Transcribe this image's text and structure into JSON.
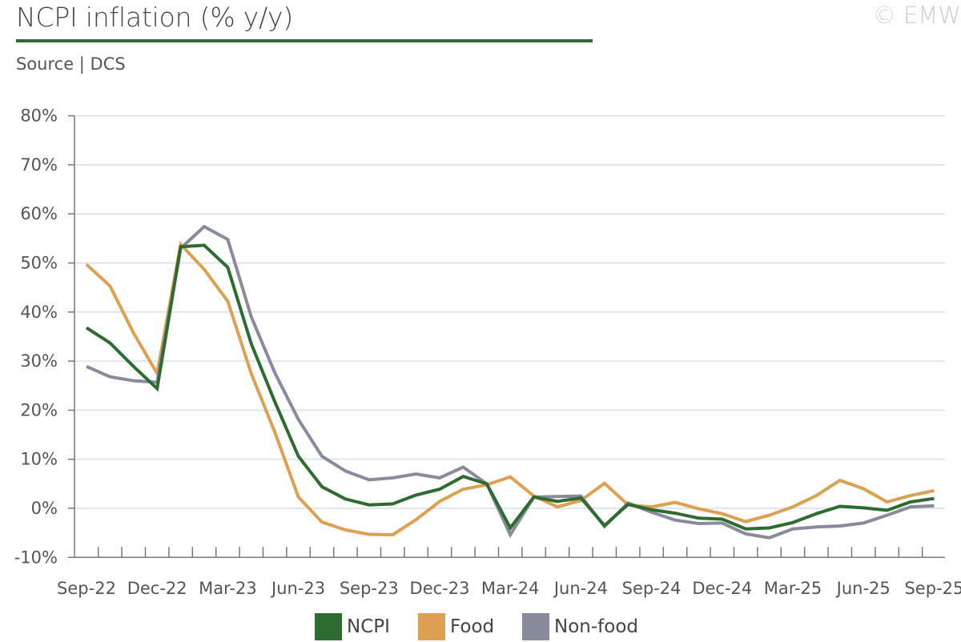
{
  "header": {
    "title": "NCPI inflation (% y/y)",
    "source": "Source | DCS",
    "copyright": "© EMW"
  },
  "colors": {
    "rule": "#2e6b30",
    "grid": "#d5e0e8",
    "axis": "#777777"
  },
  "chart_data": {
    "type": "line",
    "y_unit": "%",
    "ylim": [
      -10,
      80
    ],
    "y_ticks": [
      -10,
      0,
      10,
      20,
      30,
      40,
      50,
      60,
      70,
      80
    ],
    "y_tick_labels": [
      "-10%",
      "0%",
      "10%",
      "20%",
      "30%",
      "40%",
      "50%",
      "60%",
      "70%",
      "80%"
    ],
    "grid": true,
    "legend_position": "bottom",
    "x": [
      "Sep-22",
      "Oct-22",
      "Nov-22",
      "Dec-22",
      "Jan-23",
      "Feb-23",
      "Mar-23",
      "Apr-23",
      "May-23",
      "Jun-23",
      "Jul-23",
      "Aug-23",
      "Sep-23",
      "Oct-23",
      "Nov-23",
      "Dec-23",
      "Jan-24",
      "Feb-24",
      "Mar-24",
      "Apr-24",
      "May-24",
      "Jun-24",
      "Jul-24",
      "Aug-24",
      "Sep-24",
      "Oct-24",
      "Nov-24",
      "Dec-24",
      "Jan-25",
      "Feb-25",
      "Mar-25",
      "Apr-25",
      "May-25",
      "Jun-25",
      "Jul-25",
      "Aug-25",
      "Sep-25"
    ],
    "x_tick_labels": [
      "Sep-22",
      "Dec-22",
      "Mar-23",
      "Jun-23",
      "Sep-23",
      "Dec-23",
      "Mar-24",
      "Jun-24",
      "Sep-24",
      "Dec-24",
      "Mar-25",
      "Jun-25",
      "Sep-25"
    ],
    "series": [
      {
        "name": "NCPI",
        "color": "#2e6b30",
        "values": [
          36.8,
          33.7,
          28.9,
          24.4,
          53.3,
          53.6,
          49.1,
          33.5,
          21.7,
          10.6,
          4.4,
          1.9,
          0.7,
          0.9,
          2.7,
          3.9,
          6.5,
          5.0,
          -4.0,
          2.3,
          1.4,
          2.1,
          -3.5,
          0.8,
          -0.3,
          -1.0,
          -2.0,
          -2.2,
          -4.2,
          -4.0,
          -2.9,
          -1.1,
          0.4,
          0.1,
          -0.4,
          1.3,
          2.0
        ]
      },
      {
        "name": "Food",
        "color": "#dda051",
        "values": [
          49.7,
          45.3,
          35.7,
          27.5,
          53.8,
          48.7,
          42.2,
          27.4,
          15.5,
          2.3,
          -2.8,
          -4.4,
          -5.3,
          -5.4,
          -2.3,
          1.4,
          3.9,
          4.8,
          6.4,
          2.5,
          0.3,
          1.6,
          5.1,
          0.7,
          0.3,
          1.2,
          -0.1,
          -1.1,
          -2.7,
          -1.4,
          0.3,
          2.6,
          5.7,
          4.0,
          1.3,
          2.6,
          3.6
        ]
      },
      {
        "name": "Non-food",
        "color": "#888b9c",
        "values": [
          28.9,
          26.8,
          26.0,
          25.7,
          53.0,
          57.4,
          54.8,
          39.0,
          27.6,
          18.1,
          10.6,
          7.6,
          5.8,
          6.2,
          7.0,
          6.2,
          8.4,
          5.0,
          -5.4,
          2.3,
          2.4,
          2.5,
          -3.7,
          1.1,
          -0.8,
          -2.4,
          -3.1,
          -3.0,
          -5.2,
          -6.0,
          -4.2,
          -3.8,
          -3.6,
          -3.0,
          -1.4,
          0.3,
          0.5
        ]
      }
    ]
  }
}
